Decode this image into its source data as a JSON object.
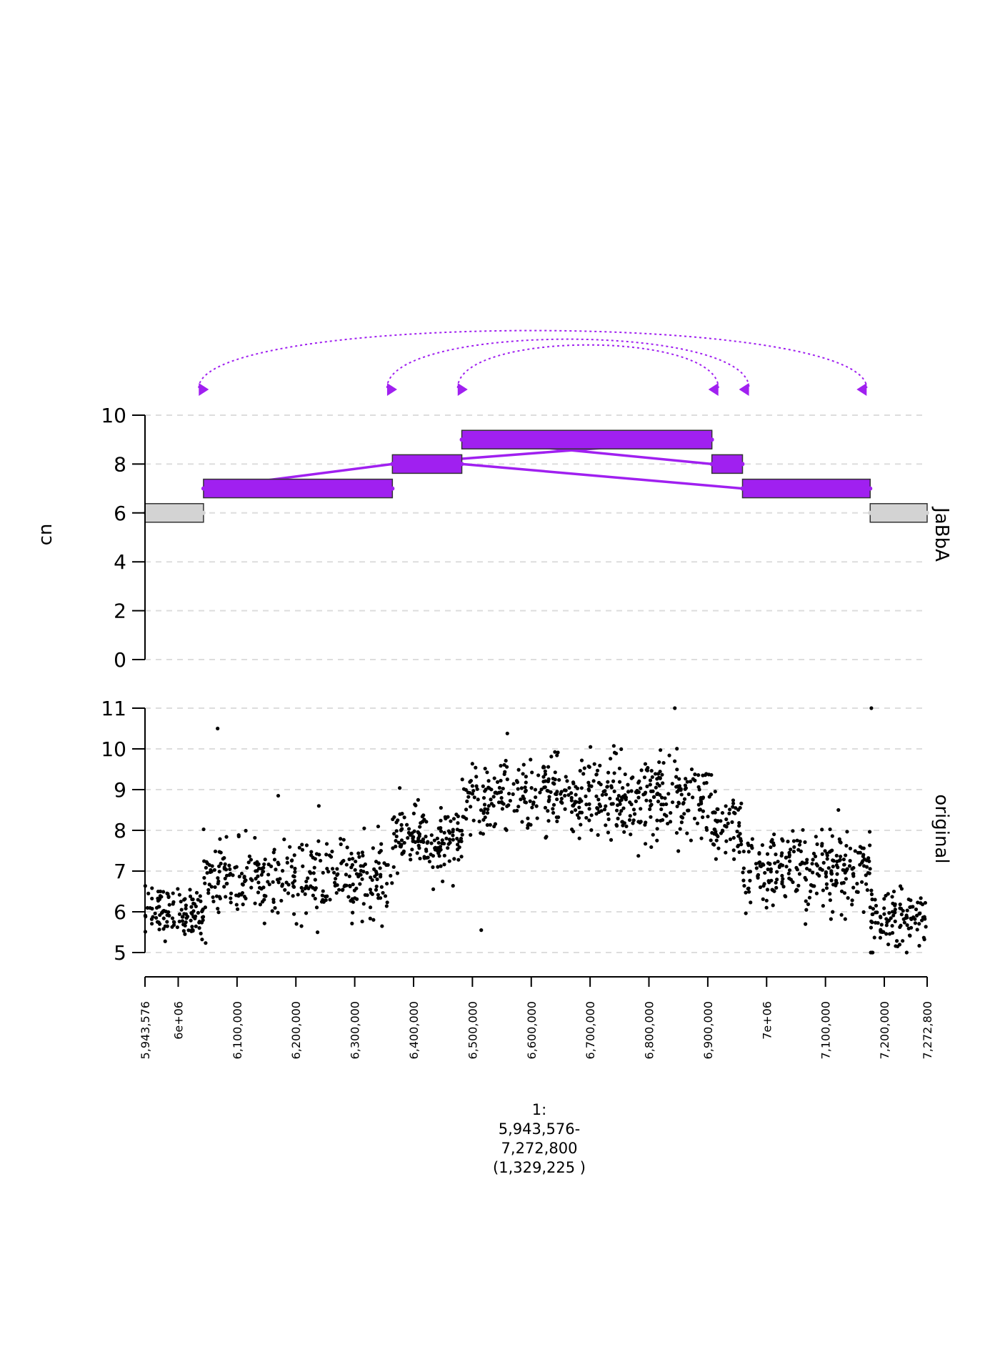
{
  "chart_data": [
    {
      "type": "segments",
      "track_label": "JaBbA",
      "ylabel": "cn",
      "ylim": [
        0,
        10
      ],
      "yticks": [
        0,
        2,
        4,
        6,
        8,
        10
      ],
      "grid": true,
      "colors": {
        "loose": "#d3d3d3",
        "amplified": "#a020f0",
        "junction": "#a020f0",
        "grid": "#dddddd"
      },
      "segments": [
        {
          "start": 5943576,
          "end": 6043000,
          "cn": 6,
          "color": "#d3d3d3"
        },
        {
          "start": 6043000,
          "end": 6364000,
          "cn": 7,
          "color": "#a020f0"
        },
        {
          "start": 6364000,
          "end": 6482000,
          "cn": 8,
          "color": "#a020f0"
        },
        {
          "start": 6482000,
          "end": 6907000,
          "cn": 9,
          "color": "#a020f0"
        },
        {
          "start": 6907000,
          "end": 6959000,
          "cn": 8,
          "color": "#a020f0"
        },
        {
          "start": 6959000,
          "end": 7176000,
          "cn": 7,
          "color": "#a020f0"
        },
        {
          "start": 7176000,
          "end": 7272800,
          "cn": 6,
          "color": "#d3d3d3"
        }
      ],
      "junctions_solid": [
        {
          "x1": 6043000,
          "y1": 7,
          "x2": 6364000,
          "y2": 8
        },
        {
          "x1": 6364000,
          "y1": 8,
          "x2": 6907000,
          "y2": 9
        },
        {
          "x1": 6482000,
          "y1": 9,
          "x2": 6907000,
          "y2": 8
        },
        {
          "x1": 6482000,
          "y1": 8,
          "x2": 6959000,
          "y2": 7
        }
      ],
      "junctions_dotted": [
        {
          "x1": 6035000,
          "x2": 7170000,
          "height": 1.0
        },
        {
          "x1": 6355000,
          "x2": 6970000,
          "height": 0.85
        },
        {
          "x1": 6475000,
          "x2": 6918000,
          "height": 0.75
        }
      ],
      "junction_arrows": [
        {
          "x": 6035000,
          "dir": "right"
        },
        {
          "x": 6355000,
          "dir": "right"
        },
        {
          "x": 6475000,
          "dir": "right"
        },
        {
          "x": 6918000,
          "dir": "left"
        },
        {
          "x": 6970000,
          "dir": "left"
        },
        {
          "x": 7170000,
          "dir": "left"
        }
      ]
    },
    {
      "type": "scatter",
      "track_label": "original",
      "ylim": [
        5,
        11
      ],
      "yticks": [
        5,
        6,
        7,
        8,
        9,
        10,
        11
      ],
      "grid": true,
      "point_color": "#000000",
      "regions": [
        {
          "start": 5943576,
          "end": 6043000,
          "mean": 6.0,
          "sd": 0.3,
          "n": 120
        },
        {
          "start": 6043000,
          "end": 6364000,
          "mean": 6.8,
          "sd": 0.45,
          "n": 330
        },
        {
          "start": 6364000,
          "end": 6482000,
          "mean": 7.75,
          "sd": 0.42,
          "n": 150
        },
        {
          "start": 6482000,
          "end": 6907000,
          "mean": 8.8,
          "sd": 0.5,
          "n": 480
        },
        {
          "start": 6907000,
          "end": 6959000,
          "mean": 8.1,
          "sd": 0.4,
          "n": 60
        },
        {
          "start": 6959000,
          "end": 7176000,
          "mean": 7.0,
          "sd": 0.45,
          "n": 260
        },
        {
          "start": 7176000,
          "end": 7272800,
          "mean": 5.9,
          "sd": 0.35,
          "n": 110
        }
      ],
      "outliers": [
        {
          "x": 6067000,
          "y": 10.5
        },
        {
          "x": 6170000,
          "y": 8.85
        },
        {
          "x": 6239000,
          "y": 8.6
        },
        {
          "x": 6515000,
          "y": 5.55
        },
        {
          "x": 6844000,
          "y": 11.0
        },
        {
          "x": 7066000,
          "y": 5.7
        },
        {
          "x": 7122000,
          "y": 8.5
        },
        {
          "x": 7178000,
          "y": 11.0
        },
        {
          "x": 7177000,
          "y": 5.0
        }
      ]
    }
  ],
  "x_axis": {
    "range": [
      5943576,
      7272800
    ],
    "ticks": [
      {
        "value": 5943576,
        "label": "5,943,576"
      },
      {
        "value": 6000000,
        "label": "6e+06"
      },
      {
        "value": 6100000,
        "label": "6,100,000"
      },
      {
        "value": 6200000,
        "label": "6,200,000"
      },
      {
        "value": 6300000,
        "label": "6,300,000"
      },
      {
        "value": 6400000,
        "label": "6,400,000"
      },
      {
        "value": 6500000,
        "label": "6,500,000"
      },
      {
        "value": 6600000,
        "label": "6,600,000"
      },
      {
        "value": 6700000,
        "label": "6,700,000"
      },
      {
        "value": 6800000,
        "label": "6,800,000"
      },
      {
        "value": 6900000,
        "label": "6,900,000"
      },
      {
        "value": 7000000,
        "label": "7e+06"
      },
      {
        "value": 7100000,
        "label": "7,100,000"
      },
      {
        "value": 7200000,
        "label": "7,200,000"
      },
      {
        "value": 7272800,
        "label": "7,272,800"
      }
    ],
    "label_lines": [
      "1:",
      "5,943,576-",
      "7,272,800",
      "(1,329,225 )"
    ]
  }
}
